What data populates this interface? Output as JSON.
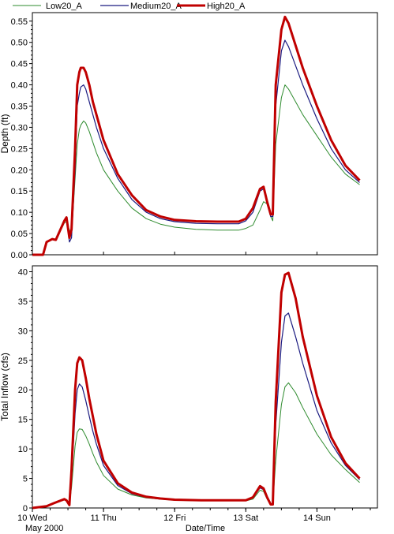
{
  "colors": {
    "low": "#2e8b2e",
    "medium": "#1a1a80",
    "high": "#c00000"
  },
  "legend": {
    "location": "top"
  },
  "chart_data": [
    {
      "type": "line",
      "ylabel": "Depth (ft)",
      "ylim": [
        0,
        0.57
      ],
      "yticks": [
        "0.00",
        "0.05",
        "0.10",
        "0.15",
        "0.20",
        "0.25",
        "0.30",
        "0.35",
        "0.40",
        "0.45",
        "0.50",
        "0.55"
      ],
      "grid": false,
      "series": [
        {
          "name": "Low20_A",
          "x": [
            0.0,
            0.15,
            0.2,
            0.28,
            0.33,
            0.45,
            0.48,
            0.55,
            0.6,
            0.63,
            0.66,
            0.68,
            0.72,
            0.75,
            0.8,
            0.85,
            0.9,
            1.0,
            1.2,
            1.4,
            1.6,
            1.8,
            2.0,
            2.3,
            2.6,
            2.9,
            3.0,
            3.1,
            3.2,
            3.25,
            3.3,
            3.35,
            3.38,
            3.42,
            3.5,
            3.55,
            3.6,
            3.8,
            4.0,
            4.2,
            4.4,
            4.6
          ],
          "y": [
            0.0,
            0.0,
            0.03,
            0.037,
            0.035,
            0.075,
            0.078,
            0.045,
            0.18,
            0.26,
            0.295,
            0.305,
            0.315,
            0.31,
            0.29,
            0.265,
            0.24,
            0.2,
            0.15,
            0.11,
            0.085,
            0.072,
            0.065,
            0.06,
            0.058,
            0.058,
            0.062,
            0.07,
            0.105,
            0.125,
            0.12,
            0.09,
            0.08,
            0.26,
            0.37,
            0.4,
            0.39,
            0.33,
            0.28,
            0.23,
            0.19,
            0.165
          ]
        },
        {
          "name": "Medium20_A",
          "x": [
            0.0,
            0.15,
            0.2,
            0.28,
            0.33,
            0.45,
            0.48,
            0.52,
            0.55,
            0.6,
            0.63,
            0.66,
            0.68,
            0.72,
            0.75,
            0.8,
            0.85,
            0.9,
            1.0,
            1.2,
            1.4,
            1.6,
            1.8,
            2.0,
            2.3,
            2.6,
            2.9,
            3.0,
            3.1,
            3.2,
            3.25,
            3.3,
            3.35,
            3.38,
            3.42,
            3.5,
            3.55,
            3.6,
            3.8,
            4.0,
            4.2,
            4.4,
            4.6
          ],
          "y": [
            0.0,
            0.0,
            0.03,
            0.037,
            0.035,
            0.08,
            0.085,
            0.03,
            0.04,
            0.2,
            0.35,
            0.38,
            0.395,
            0.4,
            0.39,
            0.36,
            0.33,
            0.3,
            0.25,
            0.18,
            0.13,
            0.1,
            0.085,
            0.078,
            0.074,
            0.073,
            0.073,
            0.08,
            0.1,
            0.15,
            0.155,
            0.12,
            0.09,
            0.09,
            0.35,
            0.48,
            0.505,
            0.49,
            0.4,
            0.32,
            0.25,
            0.2,
            0.17
          ]
        },
        {
          "name": "High20_A",
          "x": [
            0.0,
            0.15,
            0.2,
            0.28,
            0.33,
            0.45,
            0.48,
            0.52,
            0.55,
            0.6,
            0.63,
            0.66,
            0.68,
            0.72,
            0.75,
            0.8,
            0.85,
            0.9,
            1.0,
            1.2,
            1.4,
            1.6,
            1.8,
            2.0,
            2.3,
            2.6,
            2.9,
            3.0,
            3.1,
            3.2,
            3.25,
            3.3,
            3.35,
            3.38,
            3.42,
            3.5,
            3.55,
            3.6,
            3.8,
            4.0,
            4.2,
            4.4,
            4.6
          ],
          "y": [
            0.0,
            0.0,
            0.03,
            0.037,
            0.035,
            0.08,
            0.088,
            0.04,
            0.06,
            0.25,
            0.4,
            0.43,
            0.44,
            0.44,
            0.43,
            0.4,
            0.36,
            0.33,
            0.27,
            0.19,
            0.14,
            0.105,
            0.09,
            0.082,
            0.079,
            0.078,
            0.078,
            0.085,
            0.11,
            0.155,
            0.16,
            0.125,
            0.095,
            0.095,
            0.4,
            0.53,
            0.56,
            0.545,
            0.44,
            0.35,
            0.27,
            0.21,
            0.175
          ]
        }
      ]
    },
    {
      "type": "line",
      "xlabel": "Date/Time",
      "ylabel": "Total Inflow (cfs)",
      "ylim": [
        0,
        41
      ],
      "yticks": [
        "0",
        "5",
        "10",
        "15",
        "20",
        "25",
        "30",
        "35",
        "40"
      ],
      "xticks": [
        "10 Wed",
        "11 Thu",
        "12 Fri",
        "13 Sat",
        "14 Sun"
      ],
      "xtick_positions": [
        0,
        1,
        2,
        3,
        4
      ],
      "x_sublabel": "May 2000",
      "grid": false,
      "series": [
        {
          "name": "Low20_A",
          "x": [
            0.0,
            0.2,
            0.3,
            0.45,
            0.48,
            0.52,
            0.55,
            0.6,
            0.63,
            0.66,
            0.7,
            0.75,
            0.8,
            0.85,
            0.9,
            1.0,
            1.2,
            1.4,
            1.6,
            1.8,
            2.0,
            2.4,
            2.8,
            3.0,
            3.1,
            3.2,
            3.25,
            3.3,
            3.35,
            3.38,
            3.42,
            3.5,
            3.55,
            3.6,
            3.7,
            3.8,
            4.0,
            4.2,
            4.4,
            4.6
          ],
          "y": [
            0.0,
            0.3,
            0.8,
            1.5,
            1.3,
            0.5,
            3.5,
            10.5,
            12.8,
            13.4,
            13.3,
            12.2,
            10.8,
            9.2,
            7.8,
            5.5,
            3.2,
            2.2,
            1.7,
            1.5,
            1.3,
            1.2,
            1.2,
            1.2,
            1.5,
            3.0,
            2.8,
            1.5,
            0.6,
            0.6,
            8.0,
            17.5,
            20.5,
            21.2,
            19.5,
            17.0,
            12.5,
            9.0,
            6.5,
            4.3
          ]
        },
        {
          "name": "Medium20_A",
          "x": [
            0.0,
            0.2,
            0.3,
            0.45,
            0.48,
            0.52,
            0.55,
            0.6,
            0.63,
            0.66,
            0.7,
            0.75,
            0.8,
            0.85,
            0.9,
            1.0,
            1.2,
            1.4,
            1.6,
            1.8,
            2.0,
            2.4,
            2.8,
            3.0,
            3.1,
            3.2,
            3.25,
            3.3,
            3.35,
            3.38,
            3.42,
            3.5,
            3.55,
            3.6,
            3.7,
            3.8,
            4.0,
            4.2,
            4.4,
            4.6
          ],
          "y": [
            0.0,
            0.3,
            0.8,
            1.5,
            1.3,
            0.5,
            5.0,
            16.0,
            20.0,
            21.0,
            20.5,
            18.2,
            15.5,
            13.0,
            10.8,
            7.2,
            3.8,
            2.4,
            1.8,
            1.5,
            1.4,
            1.3,
            1.3,
            1.3,
            1.7,
            3.4,
            3.1,
            1.7,
            0.6,
            0.6,
            14.0,
            28.0,
            32.5,
            33.0,
            29.0,
            24.5,
            16.5,
            11.0,
            7.2,
            4.8
          ]
        },
        {
          "name": "High20_A",
          "x": [
            0.0,
            0.2,
            0.3,
            0.45,
            0.48,
            0.52,
            0.55,
            0.6,
            0.63,
            0.66,
            0.7,
            0.75,
            0.8,
            0.85,
            0.9,
            1.0,
            1.2,
            1.4,
            1.6,
            1.8,
            2.0,
            2.4,
            2.8,
            3.0,
            3.1,
            3.2,
            3.25,
            3.3,
            3.35,
            3.38,
            3.42,
            3.5,
            3.55,
            3.6,
            3.7,
            3.8,
            4.0,
            4.2,
            4.4,
            4.6
          ],
          "y": [
            0.0,
            0.3,
            0.8,
            1.5,
            1.3,
            0.5,
            6.5,
            20.0,
            24.5,
            25.5,
            25.0,
            22.0,
            18.5,
            15.5,
            12.5,
            8.0,
            4.2,
            2.6,
            1.9,
            1.6,
            1.4,
            1.3,
            1.3,
            1.3,
            1.8,
            3.7,
            3.3,
            1.8,
            0.6,
            0.6,
            18.0,
            36.5,
            39.5,
            39.8,
            35.5,
            29.0,
            19.0,
            12.0,
            7.6,
            5.0
          ]
        }
      ]
    }
  ]
}
